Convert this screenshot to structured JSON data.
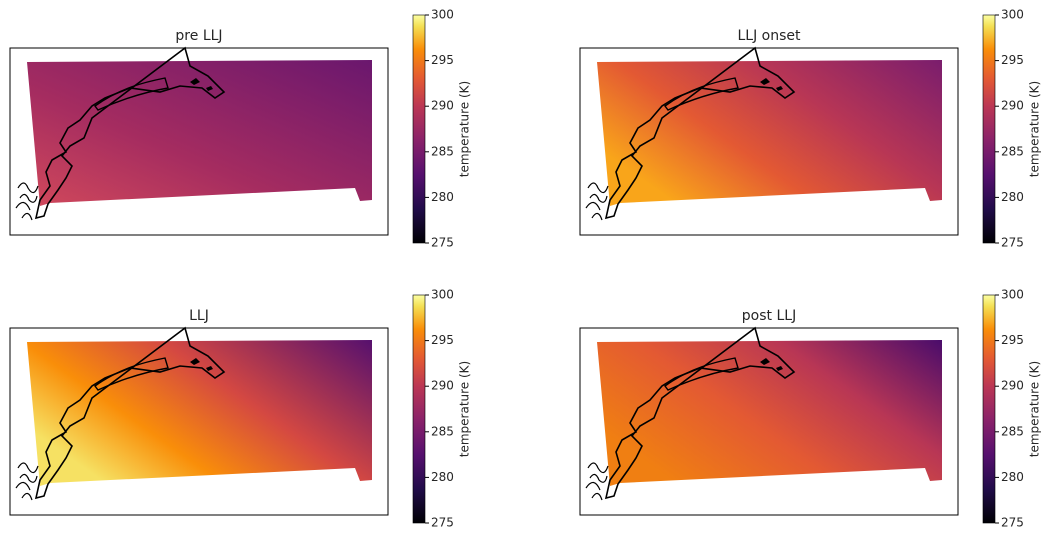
{
  "chart_data": [
    {
      "type": "heatmap",
      "title": "pre LLJ",
      "colorbar_label": "temperature (K)",
      "clim": [
        275,
        300
      ],
      "cticks": [
        275,
        280,
        285,
        290,
        295,
        300
      ]
    },
    {
      "type": "heatmap",
      "title": "LLJ onset",
      "colorbar_label": "temperature (K)",
      "clim": [
        275,
        300
      ],
      "cticks": [
        275,
        280,
        285,
        290,
        295,
        300
      ]
    },
    {
      "type": "heatmap",
      "title": "LLJ",
      "colorbar_label": "temperature (K)",
      "clim": [
        275,
        300
      ],
      "cticks": [
        275,
        280,
        285,
        290,
        295,
        300
      ]
    },
    {
      "type": "heatmap",
      "title": "post LLJ",
      "colorbar_label": "temperature (K)",
      "clim": [
        275,
        300
      ],
      "cticks": [
        275,
        280,
        285,
        290,
        295,
        300
      ]
    }
  ]
}
